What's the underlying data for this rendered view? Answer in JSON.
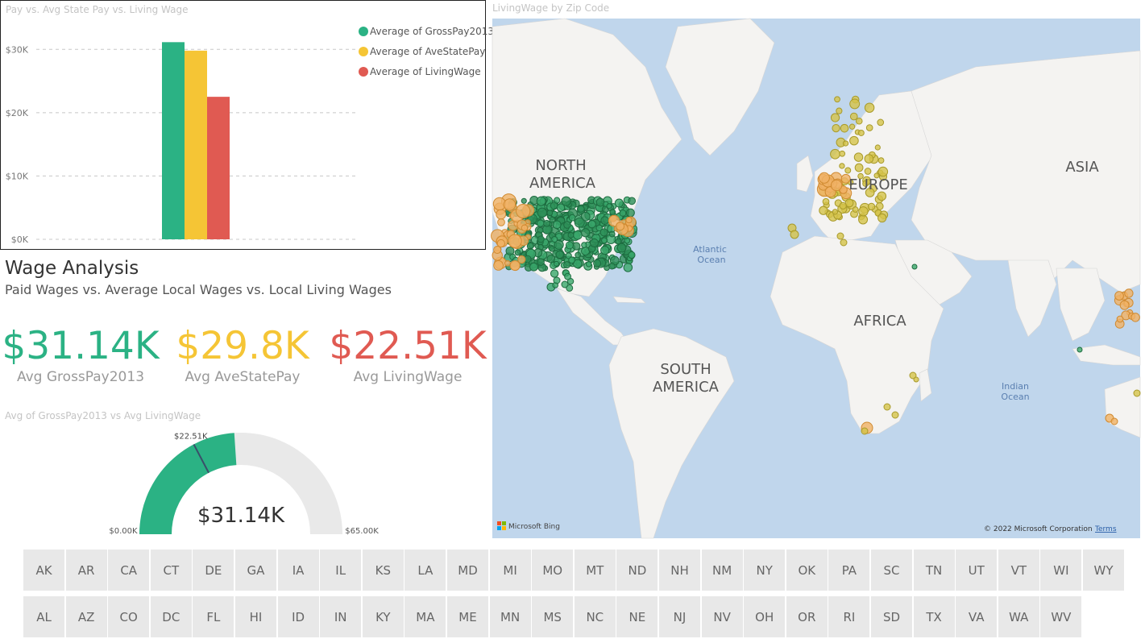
{
  "bar_chart": {
    "title": "Pay vs. Avg State Pay vs. Living Wage",
    "chart_data": {
      "type": "bar",
      "categories": [
        ""
      ],
      "series": [
        {
          "name": "Average of GrossPay2013",
          "values": [
            31140
          ],
          "color": "#2bb284"
        },
        {
          "name": "Average of AveStatePay",
          "values": [
            29800
          ],
          "color": "#f5c535"
        },
        {
          "name": "Average of LivingWage",
          "values": [
            22510
          ],
          "color": "#e05a52"
        }
      ],
      "y_ticks": [
        "$0K",
        "$10K",
        "$20K",
        "$30K"
      ],
      "ylim": [
        0,
        35000
      ],
      "grid": true,
      "legend": "top-right"
    }
  },
  "header": {
    "title": "Wage Analysis",
    "subtitle": "Paid Wages vs. Average Local Wages vs. Local Living Wages"
  },
  "kpis": [
    {
      "value": "$31.14K",
      "label": "Avg GrossPay2013",
      "color": "#2bb284"
    },
    {
      "value": "$29.8K",
      "label": "Avg AveStatePay",
      "color": "#f5c535"
    },
    {
      "value": "$22.51K",
      "label": "Avg LivingWage",
      "color": "#e05a52"
    }
  ],
  "gauge": {
    "title": "Avg of GrossPay2013 vs Avg LivingWage",
    "value": 31140,
    "value_label": "$31.14K",
    "target": 22510,
    "target_label": "$22.51K",
    "min": 0,
    "max": 65000,
    "min_label": "$0.00K",
    "max_label": "$65.00K",
    "fill_color": "#2bb284"
  },
  "map": {
    "title": "LivingWage by Zip Code",
    "labels": {
      "north_america": [
        "NORTH",
        "AMERICA"
      ],
      "south_america": [
        "SOUTH",
        "AMERICA"
      ],
      "europe": "EUROPE",
      "africa": "AFRICA",
      "asia": "ASIA",
      "atlantic": [
        "Atlantic",
        "Ocean"
      ],
      "indian": [
        "Indian",
        "Ocean"
      ]
    },
    "bing_label": "Microsoft Bing",
    "copyright": "© 2022 Microsoft Corporation",
    "terms": "Terms"
  },
  "slicer": {
    "row1": [
      "AK",
      "AR",
      "CA",
      "CT",
      "DE",
      "GA",
      "IA",
      "IL",
      "KS",
      "LA",
      "MD",
      "MI",
      "MO",
      "MT",
      "ND",
      "NH",
      "NM",
      "NY",
      "OK",
      "PA",
      "SC",
      "TN",
      "UT",
      "VT",
      "WI",
      "WY"
    ],
    "row2": [
      "AL",
      "AZ",
      "CO",
      "DC",
      "FL",
      "HI",
      "ID",
      "IN",
      "KY",
      "MA",
      "ME",
      "MN",
      "MS",
      "NC",
      "NE",
      "NJ",
      "NV",
      "OH",
      "OR",
      "RI",
      "SD",
      "TX",
      "VA",
      "WA",
      "WV"
    ]
  }
}
